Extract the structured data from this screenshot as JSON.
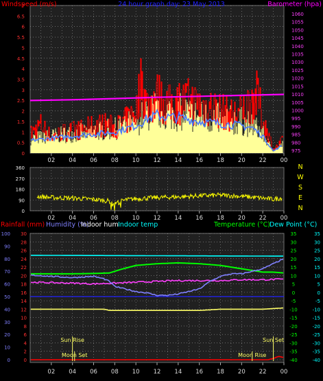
{
  "colors": {
    "bg": "#000000",
    "plot_bg": "#202020",
    "grid": "#9a9a9a",
    "wind": "#ff0000",
    "wind_avg": "#4d7cff",
    "wind_fill": "#ffff99",
    "baro": "#ff00ff",
    "title": "#2222ff",
    "direction": "#ffff00",
    "rain": "#ff0000",
    "humidity": "#8080ff",
    "indoor_hum": "#ffffff",
    "indoor_temp": "#00ffff",
    "temperature": "#00ff00",
    "dewpoint": "#00ffff",
    "sun": "#ffff66",
    "moon": "#ffff66",
    "hum_line": "#ffff66",
    "outdoor_temp_line": "#00ff00",
    "dew_line": "#ff40ff",
    "low_line": "#2222ff"
  },
  "chart_data": [
    {
      "id": "wind",
      "type": "area",
      "title": "24 hour graph day: 23 May 2013",
      "ylabel_left": "Windspeed (m/s)",
      "ylabel_right": "Barometer (hpa)",
      "ylim_left": [
        0,
        7
      ],
      "yticks_left": [
        "0",
        "0.5",
        "1",
        "1.5",
        "2",
        "2.5",
        "3",
        "3.5",
        "4",
        "4.5",
        "5",
        "5.5",
        "6",
        "6.5",
        "7"
      ],
      "ylim_right": [
        975,
        1060
      ],
      "yticks_right": [
        "975",
        "980",
        "985",
        "990",
        "995",
        "1000",
        "1005",
        "1010",
        "1015",
        "1020",
        "1025",
        "1030",
        "1035",
        "1040",
        "1045",
        "1050",
        "1055",
        "1060"
      ],
      "xticks": [
        "02",
        "04",
        "06",
        "08",
        "10",
        "12",
        "14",
        "16",
        "18",
        "20",
        "22",
        "00"
      ],
      "series": [
        {
          "name": "Gust",
          "x": [
            0,
            1,
            2,
            3,
            4,
            5,
            6,
            7,
            8,
            9,
            10,
            10.5,
            11,
            12,
            13,
            14,
            15,
            16,
            17,
            18,
            19,
            20,
            21,
            21.5,
            22,
            22.5,
            23,
            24
          ],
          "y": [
            1.2,
            1.8,
            1.0,
            1.3,
            1.4,
            1.5,
            1.7,
            1.8,
            1.6,
            2.0,
            2.6,
            4.6,
            3.0,
            3.6,
            3.0,
            3.2,
            3.3,
            3.0,
            2.9,
            2.7,
            2.4,
            2.6,
            3.4,
            3.6,
            2.0,
            1.2,
            0.2,
            0.9
          ]
        },
        {
          "name": "Average",
          "x": [
            0,
            2,
            4,
            6,
            8,
            10,
            11,
            12,
            13,
            14,
            16,
            18,
            20,
            21,
            22,
            23,
            24
          ],
          "y": [
            0.6,
            0.7,
            0.8,
            0.9,
            1.0,
            1.3,
            1.6,
            1.8,
            1.7,
            1.7,
            1.5,
            1.4,
            1.3,
            1.2,
            0.8,
            0.1,
            0.4
          ]
        },
        {
          "name": "Barometer",
          "x": [
            0,
            4,
            8,
            12,
            16,
            20,
            24
          ],
          "y": [
            1006,
            1006.5,
            1007.2,
            1008,
            1008.6,
            1009.2,
            1009.8
          ]
        }
      ]
    },
    {
      "id": "direction",
      "type": "line",
      "yticks": [
        "0",
        "90",
        "180",
        "270",
        "360"
      ],
      "ylim": [
        0,
        360
      ],
      "direction_labels": [
        "N",
        "W",
        "S",
        "E",
        "N"
      ],
      "xticks": [
        "02",
        "04",
        "06",
        "08",
        "10",
        "12",
        "14",
        "16",
        "18",
        "20",
        "22",
        "00"
      ],
      "series": [
        {
          "name": "Direction",
          "x": [
            0,
            2,
            4,
            6,
            7.5,
            8,
            9,
            10,
            12,
            14,
            16,
            18,
            20,
            22,
            23,
            24
          ],
          "y": [
            125,
            110,
            105,
            95,
            80,
            60,
            90,
            100,
            110,
            115,
            125,
            130,
            120,
            105,
            95,
            110
          ]
        }
      ]
    },
    {
      "id": "climate",
      "type": "line",
      "legend": {
        "rain": "Rainfall (mm)",
        "humidity": "Humidity (%)",
        "indoor_hum": "Indoor hum",
        "indoor_temp": "Indoor temp",
        "temperature": "Temperature (°C)",
        "dewpoint": "Dew Point (°C)"
      },
      "yticks_humidity": [
        "0",
        "10",
        "20",
        "30",
        "40",
        "50",
        "60",
        "70",
        "80",
        "90",
        "100"
      ],
      "yticks_rain": [
        "0",
        "2",
        "4",
        "6",
        "8",
        "10",
        "12",
        "14",
        "16",
        "18",
        "20",
        "22",
        "24",
        "26",
        "28",
        "30"
      ],
      "yticks_temp_inner": [
        "-40",
        "-35",
        "-30",
        "-25",
        "-20",
        "-15",
        "-10",
        "-5",
        "0",
        "5",
        "10",
        "15",
        "20",
        "25",
        "30",
        "35"
      ],
      "yticks_temp_outer": [
        "-40",
        "-35",
        "-30",
        "-25",
        "-20",
        "-15",
        "-10",
        "-5",
        "0",
        "5",
        "10",
        "15",
        "20",
        "25",
        "30",
        "35"
      ],
      "ylim_temp": [
        -40,
        35
      ],
      "ylim_humidity": [
        0,
        100
      ],
      "xticks": [
        "02",
        "04",
        "06",
        "08",
        "10",
        "12",
        "14",
        "16",
        "18",
        "20",
        "22",
        "00"
      ],
      "annotations": [
        {
          "text": "Sun Rise",
          "x": 4.0,
          "kind": "sun",
          "row": "upper"
        },
        {
          "text": "Moon Set",
          "x": 4.2,
          "kind": "moon",
          "row": "lower"
        },
        {
          "text": "Moon Rise",
          "x": 21.0,
          "kind": "moon",
          "row": "lower"
        },
        {
          "text": "Sun Set",
          "x": 23.0,
          "kind": "sun",
          "row": "upper"
        }
      ],
      "series": [
        {
          "name": "Indoor temp",
          "x": [
            0,
            24
          ],
          "y": [
            22,
            21.5
          ],
          "axis": "temp"
        },
        {
          "name": "Temperature",
          "x": [
            0,
            4,
            6,
            7.5,
            8.5,
            10,
            12,
            14,
            16,
            18,
            20,
            21,
            22,
            23,
            24
          ],
          "y": [
            11,
            11,
            11.2,
            11.5,
            13.5,
            16,
            17,
            17.5,
            17,
            16,
            14,
            13,
            12,
            12,
            11.5
          ],
          "axis": "temp"
        },
        {
          "name": "Dew Point",
          "x": [
            0,
            4,
            6,
            8,
            10,
            12,
            14,
            16,
            18,
            20,
            22,
            24
          ],
          "y": [
            6,
            5.5,
            5,
            5.5,
            6,
            6.5,
            7,
            7,
            7,
            7.5,
            7.5,
            7.8
          ],
          "axis": "temp"
        },
        {
          "name": "Humidity",
          "x": [
            0,
            2,
            4,
            6,
            7,
            7.5,
            8,
            9,
            10,
            11,
            12,
            13,
            14,
            15,
            16,
            17,
            18,
            19,
            20,
            21,
            22,
            23,
            24
          ],
          "y": [
            67,
            66,
            65,
            66,
            64,
            62,
            58,
            56,
            54,
            53,
            51,
            51,
            52,
            54,
            56,
            62,
            66,
            68,
            68,
            70,
            72,
            76,
            80
          ],
          "axis": "humidity"
        },
        {
          "name": "Indoor hum",
          "x": [
            0,
            4,
            6,
            7,
            7.5,
            8,
            10,
            12,
            14,
            16,
            18,
            20,
            22,
            24
          ],
          "y": [
            40,
            40,
            40,
            40,
            39,
            39,
            39,
            39,
            39,
            39,
            40,
            40,
            40,
            41
          ],
          "axis": "humidity"
        },
        {
          "name": "Rainfall",
          "x": [
            0,
            22.5,
            23,
            23.5,
            24
          ],
          "y": [
            0,
            0,
            0.3,
            0.8,
            0.5
          ],
          "axis": "rain"
        }
      ]
    }
  ]
}
